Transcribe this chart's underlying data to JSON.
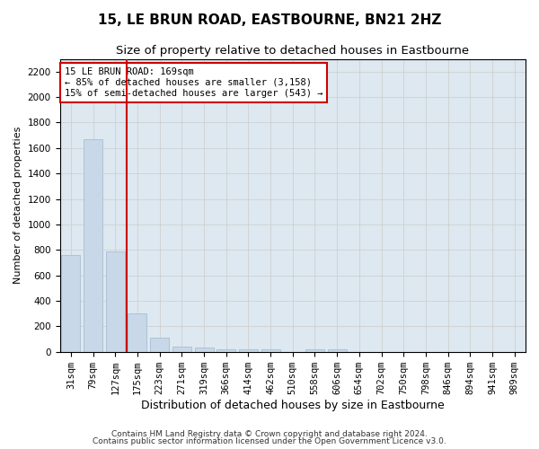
{
  "title": "15, LE BRUN ROAD, EASTBOURNE, BN21 2HZ",
  "subtitle": "Size of property relative to detached houses in Eastbourne",
  "xlabel": "Distribution of detached houses by size in Eastbourne",
  "ylabel": "Number of detached properties",
  "categories": [
    "31sqm",
    "79sqm",
    "127sqm",
    "175sqm",
    "223sqm",
    "271sqm",
    "319sqm",
    "366sqm",
    "414sqm",
    "462sqm",
    "510sqm",
    "558sqm",
    "606sqm",
    "654sqm",
    "702sqm",
    "750sqm",
    "798sqm",
    "846sqm",
    "894sqm",
    "941sqm",
    "989sqm"
  ],
  "values": [
    760,
    1670,
    790,
    300,
    110,
    40,
    30,
    20,
    20,
    20,
    0,
    20,
    20,
    0,
    0,
    0,
    0,
    0,
    0,
    0,
    0
  ],
  "bar_color": "#c8d8e8",
  "bar_edge_color": "#a0b8cc",
  "vline_color": "#cc0000",
  "vline_x": 2.5,
  "annotation_text": "15 LE BRUN ROAD: 169sqm\n← 85% of detached houses are smaller (3,158)\n15% of semi-detached houses are larger (543) →",
  "annotation_box_color": "#ffffff",
  "annotation_box_edge_color": "#cc0000",
  "ylim": [
    0,
    2300
  ],
  "yticks": [
    0,
    200,
    400,
    600,
    800,
    1000,
    1200,
    1400,
    1600,
    1800,
    2000,
    2200
  ],
  "grid_color": "#cccccc",
  "bg_color": "#dde8f0",
  "fig_color": "#ffffff",
  "footer1": "Contains HM Land Registry data © Crown copyright and database right 2024.",
  "footer2": "Contains public sector information licensed under the Open Government Licence v3.0.",
  "title_fontsize": 11,
  "subtitle_fontsize": 9.5,
  "xlabel_fontsize": 9,
  "ylabel_fontsize": 8,
  "tick_fontsize": 7.5,
  "annotation_fontsize": 7.5,
  "footer_fontsize": 6.5
}
